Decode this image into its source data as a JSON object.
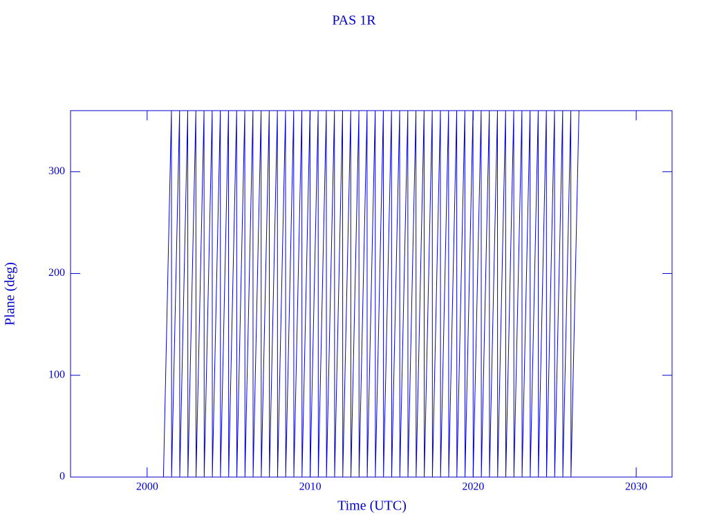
{
  "chart_data": {
    "type": "line",
    "title": "PAS 1R",
    "x_label": "Time (UTC)",
    "y_label": "Plane (deg)",
    "color": "#0000cc",
    "x": [
      2001,
      2001.49,
      2001.5,
      2001.99,
      2002,
      2002.49,
      2002.5,
      2002.99,
      2003,
      2003.49,
      2003.5,
      2003.99,
      2004,
      2004.49,
      2004.5,
      2004.99,
      2005,
      2005.49,
      2005.5,
      2005.99,
      2006,
      2006.49,
      2006.5,
      2006.99,
      2007,
      2007.49,
      2007.5,
      2007.99,
      2008,
      2008.49,
      2008.5,
      2008.99,
      2009,
      2009.49,
      2009.5,
      2009.99,
      2010,
      2010.49,
      2010.5,
      2010.99,
      2011,
      2011.49,
      2011.5,
      2011.99,
      2012,
      2012.49,
      2012.5,
      2012.99,
      2013,
      2013.49,
      2013.5,
      2013.99,
      2014,
      2014.49,
      2014.5,
      2014.99,
      2015,
      2015.49,
      2015.5,
      2015.99,
      2016,
      2016.49,
      2016.5,
      2016.99,
      2017,
      2017.49,
      2017.5,
      2017.99,
      2018,
      2018.49,
      2018.5,
      2018.99,
      2019,
      2019.49,
      2019.5,
      2019.99,
      2020,
      2020.49,
      2020.5,
      2020.99,
      2021,
      2021.49,
      2021.5,
      2021.99,
      2022,
      2022.49,
      2022.5,
      2022.99,
      2023,
      2023.49,
      2023.5,
      2023.99,
      2024,
      2024.49,
      2024.5,
      2024.99,
      2025,
      2025.49,
      2025.5,
      2025.99,
      2026,
      2026.49
    ],
    "values": [
      0,
      360,
      0,
      360,
      0,
      360,
      0,
      360,
      0,
      360,
      0,
      360,
      0,
      360,
      0,
      360,
      0,
      360,
      0,
      360,
      0,
      360,
      0,
      360,
      0,
      360,
      0,
      360,
      0,
      360,
      0,
      360,
      0,
      360,
      0,
      360,
      0,
      360,
      0,
      360,
      0,
      360,
      0,
      360,
      0,
      360,
      0,
      360,
      0,
      360,
      0,
      360,
      0,
      360,
      0,
      360,
      0,
      360,
      0,
      360,
      0,
      360,
      0,
      360,
      0,
      360,
      0,
      360,
      0,
      360,
      0,
      360,
      0,
      360,
      0,
      360,
      0,
      360,
      0,
      360,
      0,
      360,
      0,
      360,
      0,
      360,
      0,
      360,
      0,
      360,
      0,
      360,
      0,
      360,
      0,
      360,
      0,
      360,
      0,
      360,
      0,
      360
    ],
    "xlim": [
      1995.3,
      2032.2
    ],
    "xticks": [
      2000,
      2010,
      2020,
      2030
    ],
    "ylim": [
      0,
      360
    ],
    "yticks": [
      0,
      100,
      200,
      300
    ]
  }
}
